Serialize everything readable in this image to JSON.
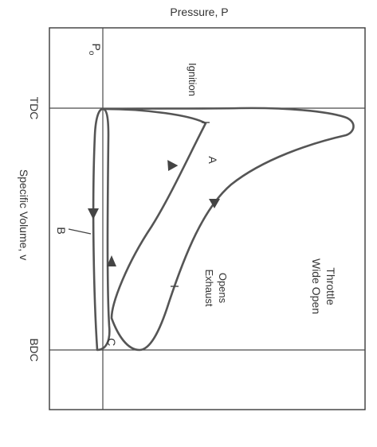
{
  "diagram": {
    "top_axis_label": "Pressure, P",
    "side_axis_label": "Specific Volume, v",
    "reference_pressure_label": "P",
    "reference_pressure_subscript": "o",
    "tdc_label": "TDC",
    "bdc_label": "BDC",
    "point_labels": {
      "a": "A",
      "b": "B",
      "c": "C"
    },
    "annotations": {
      "ignition": "Ignition",
      "exhaust_line1": "Exhaust",
      "exhaust_line2": "Opens",
      "throttle_line1": "Wide Open",
      "throttle_line2": "Throttle"
    },
    "colors": {
      "curve": "#555555",
      "frame": "#3a3a3a",
      "text": "#333333"
    }
  }
}
